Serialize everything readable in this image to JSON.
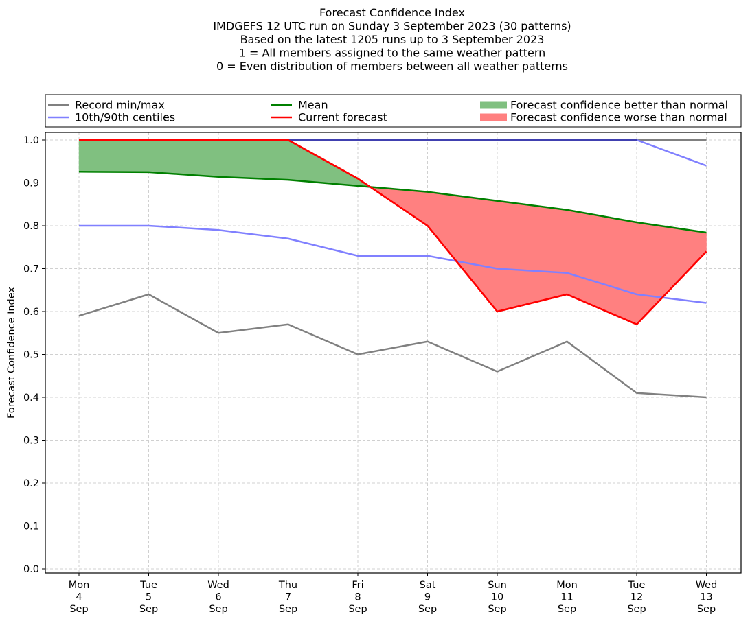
{
  "chart_data": {
    "type": "line",
    "title": [
      "Forecast Confidence Index",
      "IMDGEFS 12 UTC run on Sunday 3 September 2023 (30 patterns)",
      "Based on the latest 1205 runs up to 3 September 2023",
      "1 = All members assigned to the same weather pattern",
      "0 = Even distribution of members between all weather patterns"
    ],
    "xlabel": "",
    "ylabel": "Forecast Confidence Index",
    "ylim": [
      0.0,
      1.0
    ],
    "yticks": [
      "0.0",
      "0.1",
      "0.2",
      "0.3",
      "0.4",
      "0.5",
      "0.6",
      "0.7",
      "0.8",
      "0.9",
      "1.0"
    ],
    "grid": true,
    "categories": [
      [
        "Mon",
        "4",
        "Sep"
      ],
      [
        "Tue",
        "5",
        "Sep"
      ],
      [
        "Wed",
        "6",
        "Sep"
      ],
      [
        "Thu",
        "7",
        "Sep"
      ],
      [
        "Fri",
        "8",
        "Sep"
      ],
      [
        "Sat",
        "9",
        "Sep"
      ],
      [
        "Sun",
        "10",
        "Sep"
      ],
      [
        "Mon",
        "11",
        "Sep"
      ],
      [
        "Tue",
        "12",
        "Sep"
      ],
      [
        "Wed",
        "13",
        "Sep"
      ]
    ],
    "series": [
      {
        "name": "Record min",
        "legend": "Record min/max",
        "color": "#808080",
        "values": [
          0.59,
          0.64,
          0.55,
          0.57,
          0.5,
          0.53,
          0.46,
          0.53,
          0.41,
          0.4
        ]
      },
      {
        "name": "Record max",
        "legend": "Record min/max",
        "color": "#808080",
        "values": [
          1.0,
          1.0,
          1.0,
          1.0,
          1.0,
          1.0,
          1.0,
          1.0,
          1.0,
          1.0
        ]
      },
      {
        "name": "10th centile",
        "legend": "10th/90th centiles",
        "color": "#8080ff",
        "values": [
          0.8,
          0.8,
          0.79,
          0.77,
          0.73,
          0.73,
          0.7,
          0.69,
          0.64,
          0.62
        ]
      },
      {
        "name": "90th centile",
        "legend": "10th/90th centiles",
        "color": "#8080ff",
        "values": [
          1.0,
          1.0,
          1.0,
          1.0,
          1.0,
          1.0,
          1.0,
          1.0,
          1.0,
          0.94
        ]
      },
      {
        "name": "Mean",
        "legend": "Mean",
        "color": "#008000",
        "values": [
          0.926,
          0.925,
          0.914,
          0.907,
          0.893,
          0.879,
          0.858,
          0.837,
          0.808,
          0.784
        ]
      },
      {
        "name": "Current forecast",
        "legend": "Current forecast",
        "color": "#ff0000",
        "values": [
          1.0,
          1.0,
          1.0,
          1.0,
          0.91,
          0.8,
          0.6,
          0.64,
          0.57,
          0.74
        ]
      }
    ],
    "fills": [
      {
        "name": "Forecast confidence better than normal",
        "color": "#80c080",
        "condition": "current > mean"
      },
      {
        "name": "Forecast confidence worse than normal",
        "color": "#ff8080",
        "condition": "current < mean"
      }
    ],
    "legend": {
      "placement": "top",
      "columns": [
        [
          {
            "label": "Record min/max",
            "kind": "line",
            "color": "#808080"
          },
          {
            "label": "10th/90th centiles",
            "kind": "line",
            "color": "#8080ff"
          }
        ],
        [
          {
            "label": "Mean",
            "kind": "line",
            "color": "#008000"
          },
          {
            "label": "Current forecast",
            "kind": "line",
            "color": "#ff0000"
          }
        ],
        [
          {
            "label": "Forecast confidence better than normal",
            "kind": "patch",
            "color": "#80c080"
          },
          {
            "label": "Forecast confidence worse than normal",
            "kind": "patch",
            "color": "#ff8080"
          }
        ]
      ]
    }
  }
}
